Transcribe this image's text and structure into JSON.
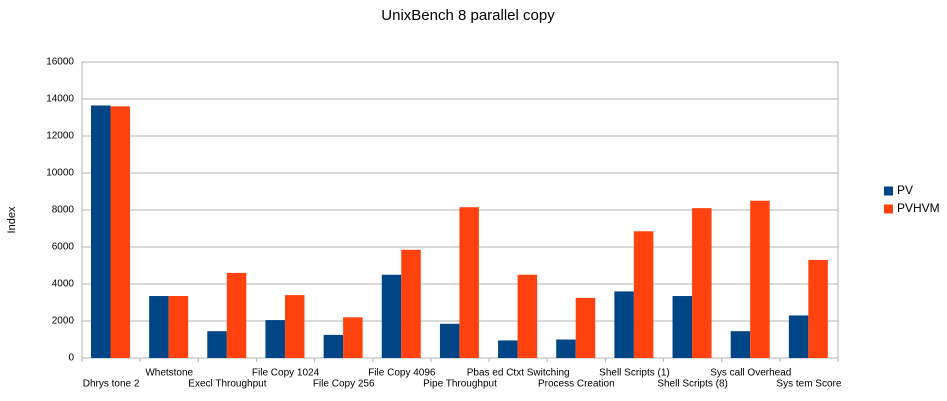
{
  "chart_data": {
    "type": "bar",
    "title": "UnixBench 8 parallel copy",
    "ylabel": "Index",
    "categories": [
      "Dhrys tone 2",
      "Whetstone",
      "Execl Throughput",
      "File Copy 1024",
      "File Copy 256",
      "File Copy 4096",
      "Pipe Throughput",
      "Pbas ed Ctxt Switching",
      "Process Creation",
      "Shell Scripts (1)",
      "Shell Scripts (8)",
      "Sys call Overhead",
      "Sys tem Score"
    ],
    "series": [
      {
        "name": "PV",
        "color": "#004586",
        "values": [
          13650,
          3350,
          1450,
          2050,
          1250,
          4500,
          1850,
          950,
          1000,
          3600,
          3350,
          1450,
          2300
        ]
      },
      {
        "name": "PVHVM",
        "color": "#ff420e",
        "values": [
          13600,
          3350,
          4600,
          3400,
          2200,
          5850,
          8150,
          4500,
          3250,
          6850,
          8100,
          8500,
          5300
        ]
      }
    ],
    "ylim": [
      0,
      16000
    ],
    "yticks": [
      0,
      2000,
      4000,
      6000,
      8000,
      10000,
      12000,
      14000,
      16000
    ],
    "grid": true,
    "legend": "right"
  }
}
